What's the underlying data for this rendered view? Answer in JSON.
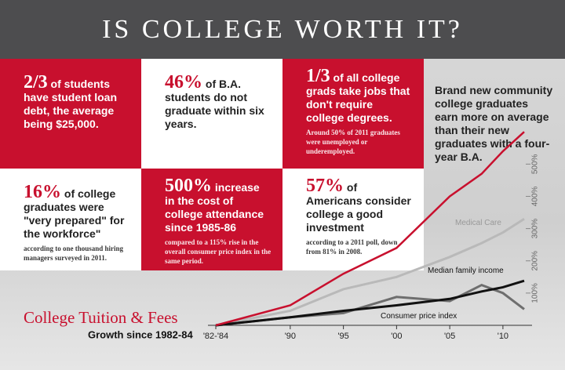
{
  "title": "IS COLLEGE WORTH IT?",
  "cells": [
    {
      "big": "2/3",
      "text": " of students have student loan debt, the average being $25,000."
    },
    {
      "big": "46%",
      "text": " of B.A. students do not graduate within six years."
    },
    {
      "big": "1/3",
      "text": " of all college grads take jobs that don't require college degrees.",
      "note": "Around 50% of 2011 graduates were unemployed or underemployed."
    },
    {
      "text": "Brand new community college graduates earn more on average than their new graduates with a four-year B.A."
    },
    {
      "big": "16%",
      "text": " of college graduates were \"very prepared\" for the workforce\"",
      "note": "according to one thousand hiring managers surveyed in 2011."
    },
    {
      "big": "500%",
      "text": " increase in the cost of college attendance since 1985-86",
      "note": "compared to a 115% rise in the overall consumer price index in the same period."
    },
    {
      "big": "57%",
      "text": " of Americans consider college a good investment",
      "note": "according to a 2011 poll, down from 81% in 2008."
    }
  ],
  "chart_data": {
    "type": "line",
    "title": "College Tuition & Fees",
    "subtitle": "Growth since 1982-84",
    "x": [
      1983,
      1990,
      1995,
      2000,
      2005,
      2008,
      2010,
      2012
    ],
    "series": [
      {
        "name": "Medical Care",
        "color": "#b9b9b9",
        "values": [
          0,
          45,
          112,
          150,
          212,
          255,
          288,
          330
        ]
      },
      {
        "name": "Median family income",
        "color": "#6e6e6e",
        "values": [
          0,
          25,
          38,
          88,
          75,
          125,
          100,
          50
        ]
      },
      {
        "name": "Consumer price index",
        "color": "#111111",
        "values": [
          0,
          25,
          45,
          62,
          82,
          105,
          118,
          138
        ]
      },
      {
        "name": "College Tuition & Fees",
        "color": "#c8102e",
        "values": [
          0,
          62,
          160,
          240,
          400,
          470,
          540,
          600
        ]
      }
    ],
    "xlim": [
      1983,
      2012
    ],
    "xticks": [
      {
        "value": 1983,
        "label": "'82-'84"
      },
      {
        "value": 1990,
        "label": "'90"
      },
      {
        "value": 1995,
        "label": "'95"
      },
      {
        "value": 2000,
        "label": "'00"
      },
      {
        "value": 2005,
        "label": "'05"
      },
      {
        "value": 2010,
        "label": "'10"
      }
    ],
    "ylim": [
      0,
      620
    ],
    "yticks": [
      {
        "value": 100,
        "label": "100%"
      },
      {
        "value": 200,
        "label": "200%"
      },
      {
        "value": 300,
        "label": "300%"
      },
      {
        "value": 400,
        "label": "400%"
      },
      {
        "value": 500,
        "label": "500%"
      }
    ]
  }
}
